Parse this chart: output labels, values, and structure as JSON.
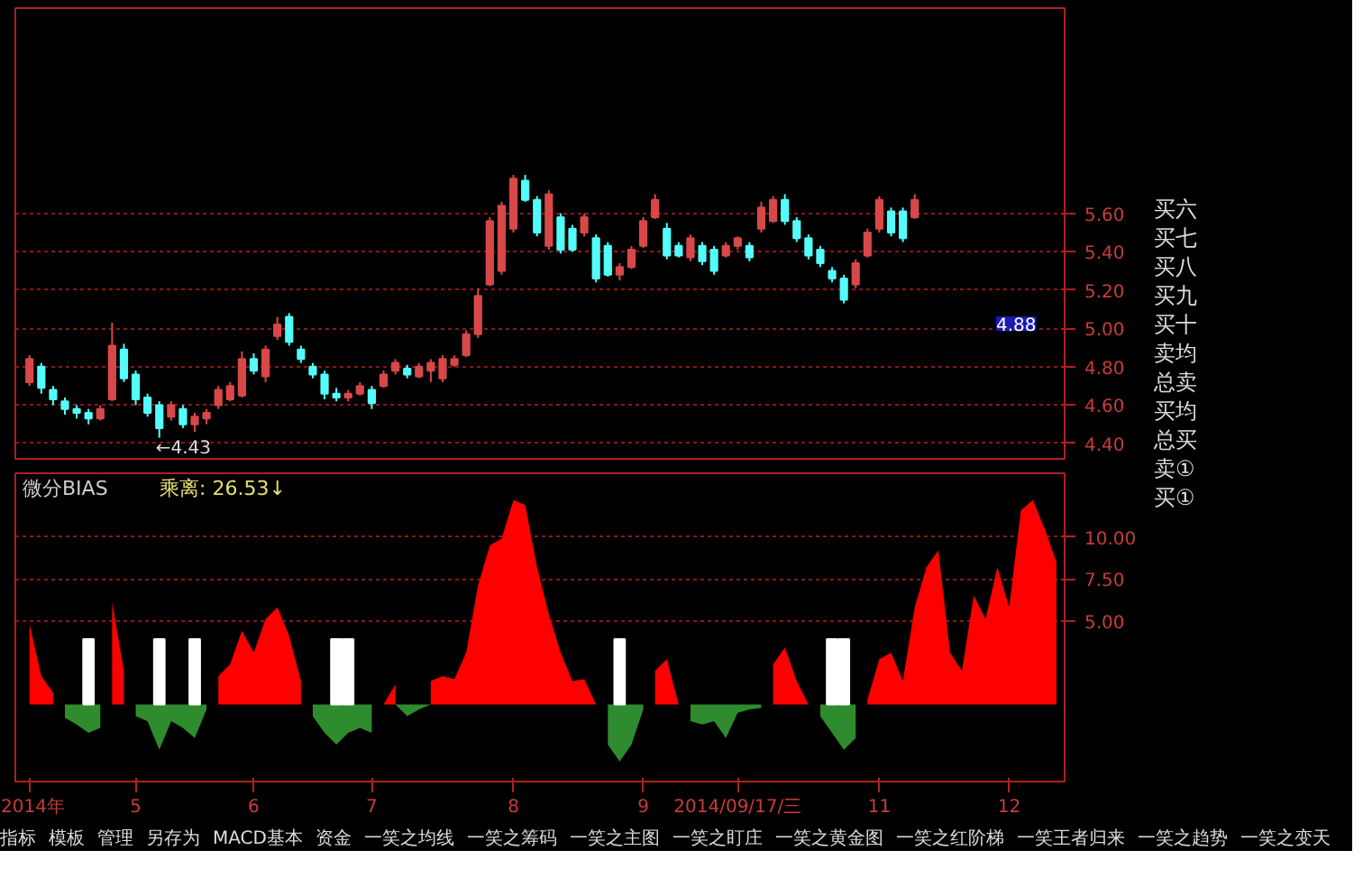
{
  "chart_data": [
    {
      "type": "candlestick",
      "categories": [
        null,
        null,
        null,
        null,
        null,
        null,
        null,
        null,
        null,
        null,
        null,
        null,
        null,
        null,
        null,
        null,
        null,
        null,
        null,
        null,
        null,
        null,
        null,
        null,
        null,
        null,
        null,
        null,
        null,
        null,
        null,
        null,
        null,
        null,
        null,
        null,
        null,
        null,
        null,
        null,
        null,
        null,
        null,
        null,
        null,
        null,
        null,
        null,
        null,
        null,
        null,
        null,
        null,
        null,
        null,
        null,
        null,
        null,
        null,
        null,
        null,
        null,
        null,
        null,
        null,
        null,
        null,
        null,
        null,
        null,
        null,
        null,
        null,
        null,
        null,
        null,
        null,
        null,
        null,
        null,
        null,
        null,
        null,
        null,
        null,
        null,
        null,
        null
      ],
      "ohlc": [
        [
          4.72,
          4.86,
          4.7,
          4.84
        ],
        [
          4.8,
          4.82,
          4.66,
          4.69
        ],
        [
          4.68,
          4.7,
          4.6,
          4.63
        ],
        [
          4.62,
          4.64,
          4.55,
          4.58
        ],
        [
          4.58,
          4.6,
          4.53,
          4.56
        ],
        [
          4.56,
          4.58,
          4.5,
          4.53
        ],
        [
          4.53,
          4.6,
          4.52,
          4.58
        ],
        [
          4.63,
          5.03,
          4.62,
          4.91
        ],
        [
          4.89,
          4.92,
          4.72,
          4.74
        ],
        [
          4.76,
          4.78,
          4.6,
          4.63
        ],
        [
          4.64,
          4.66,
          4.54,
          4.56
        ],
        [
          4.6,
          4.62,
          4.43,
          4.48
        ],
        [
          4.54,
          4.62,
          4.52,
          4.6
        ],
        [
          4.58,
          4.6,
          4.48,
          4.5
        ],
        [
          4.5,
          4.56,
          4.46,
          4.54
        ],
        [
          4.53,
          4.58,
          4.5,
          4.56
        ],
        [
          4.6,
          4.7,
          4.58,
          4.68
        ],
        [
          4.63,
          4.72,
          4.62,
          4.7
        ],
        [
          4.65,
          4.88,
          4.64,
          4.84
        ],
        [
          4.84,
          4.87,
          4.76,
          4.78
        ],
        [
          4.75,
          4.91,
          4.72,
          4.89
        ],
        [
          4.96,
          5.06,
          4.94,
          5.02
        ],
        [
          5.06,
          5.08,
          4.91,
          4.93
        ],
        [
          4.89,
          4.91,
          4.82,
          4.84
        ],
        [
          4.8,
          4.82,
          4.74,
          4.76
        ],
        [
          4.76,
          4.78,
          4.63,
          4.66
        ],
        [
          4.66,
          4.69,
          4.62,
          4.64
        ],
        [
          4.64,
          4.68,
          4.62,
          4.66
        ],
        [
          4.66,
          4.72,
          4.65,
          4.7
        ],
        [
          4.68,
          4.7,
          4.58,
          4.61
        ],
        [
          4.7,
          4.78,
          4.69,
          4.76
        ],
        [
          4.78,
          4.84,
          4.76,
          4.82
        ],
        [
          4.79,
          4.81,
          4.74,
          4.76
        ],
        [
          4.75,
          4.82,
          4.74,
          4.8
        ],
        [
          4.78,
          4.84,
          4.72,
          4.82
        ],
        [
          4.74,
          4.86,
          4.72,
          4.84
        ],
        [
          4.81,
          4.86,
          4.8,
          4.84
        ],
        [
          4.86,
          4.99,
          4.85,
          4.97
        ],
        [
          4.97,
          5.21,
          4.95,
          5.17
        ],
        [
          5.23,
          5.58,
          5.22,
          5.56
        ],
        [
          5.3,
          5.66,
          5.28,
          5.64
        ],
        [
          5.52,
          5.8,
          5.5,
          5.78
        ],
        [
          5.77,
          5.8,
          5.66,
          5.67
        ],
        [
          5.67,
          5.69,
          5.48,
          5.5
        ],
        [
          5.43,
          5.72,
          5.41,
          5.7
        ],
        [
          5.58,
          5.6,
          5.39,
          5.41
        ],
        [
          5.52,
          5.54,
          5.4,
          5.41
        ],
        [
          5.5,
          5.6,
          5.48,
          5.58
        ],
        [
          5.47,
          5.49,
          5.24,
          5.26
        ],
        [
          5.43,
          5.45,
          5.27,
          5.28
        ],
        [
          5.28,
          5.34,
          5.25,
          5.32
        ],
        [
          5.32,
          5.43,
          5.31,
          5.41
        ],
        [
          5.43,
          5.58,
          5.42,
          5.56
        ],
        [
          5.58,
          5.7,
          5.57,
          5.67
        ],
        [
          5.52,
          5.55,
          5.36,
          5.38
        ],
        [
          5.43,
          5.45,
          5.37,
          5.38
        ],
        [
          5.37,
          5.49,
          5.35,
          5.47
        ],
        [
          5.43,
          5.45,
          5.33,
          5.35
        ],
        [
          5.41,
          5.43,
          5.28,
          5.3
        ],
        [
          5.38,
          5.45,
          5.37,
          5.43
        ],
        [
          5.43,
          5.48,
          5.41,
          5.47
        ],
        [
          5.43,
          5.45,
          5.35,
          5.37
        ],
        [
          5.52,
          5.66,
          5.5,
          5.63
        ],
        [
          5.56,
          5.69,
          5.55,
          5.67
        ],
        [
          5.67,
          5.7,
          5.54,
          5.56
        ],
        [
          5.56,
          5.58,
          5.45,
          5.47
        ],
        [
          5.47,
          5.49,
          5.36,
          5.38
        ],
        [
          5.41,
          5.43,
          5.32,
          5.34
        ],
        [
          5.3,
          5.32,
          5.24,
          5.26
        ],
        [
          5.26,
          5.28,
          5.13,
          5.15
        ],
        [
          5.23,
          5.36,
          5.21,
          5.34
        ],
        [
          5.38,
          5.52,
          5.37,
          5.5
        ],
        [
          5.52,
          5.69,
          5.5,
          5.67
        ],
        [
          5.61,
          5.63,
          5.48,
          5.5
        ],
        [
          5.61,
          5.63,
          5.45,
          5.47
        ],
        [
          5.58,
          5.7,
          5.57,
          5.67
        ],
        null,
        null,
        null,
        null,
        null,
        null,
        null,
        null,
        null,
        null,
        null,
        null
      ],
      "colors": [
        "#d84848",
        "#54fcfc",
        "#54fcfc",
        "#54fcfc",
        "#54fcfc",
        "#54fcfc",
        "#d84848",
        "#d84848",
        "#54fcfc",
        "#54fcfc",
        "#54fcfc",
        "#54fcfc",
        "#d84848",
        "#54fcfc",
        "#d84848",
        "#d84848",
        "#d84848",
        "#d84848",
        "#d84848",
        "#54fcfc",
        "#d84848",
        "#d84848",
        "#54fcfc",
        "#54fcfc",
        "#54fcfc",
        "#54fcfc",
        "#54fcfc",
        "#d84848",
        "#d84848",
        "#54fcfc",
        "#d84848",
        "#d84848",
        "#54fcfc",
        "#d84848",
        "#d84848",
        "#d84848",
        "#d84848",
        "#d84848",
        "#d84848",
        "#d84848",
        "#d84848",
        "#d84848",
        "#54fcfc",
        "#54fcfc",
        "#d84848",
        "#54fcfc",
        "#54fcfc",
        "#d84848",
        "#54fcfc",
        "#54fcfc",
        "#d84848",
        "#d84848",
        "#d84848",
        "#d84848",
        "#54fcfc",
        "#54fcfc",
        "#d84848",
        "#54fcfc",
        "#54fcfc",
        "#d84848",
        "#d84848",
        "#54fcfc",
        "#d84848",
        "#d84848",
        "#54fcfc",
        "#54fcfc",
        "#54fcfc",
        "#54fcfc",
        "#54fcfc",
        "#54fcfc",
        "#d84848",
        "#d84848",
        "#d84848",
        "#54fcfc",
        "#54fcfc",
        "#d84848",
        null,
        null,
        null,
        null,
        null,
        null,
        null,
        null,
        null,
        null,
        null,
        null
      ],
      "ylim": [
        4.32,
        6.67
      ],
      "yticks": [
        {
          "value": 4.4,
          "label": "4.40"
        },
        {
          "value": 4.6,
          "label": "4.60"
        },
        {
          "value": 4.8,
          "label": "4.80"
        },
        {
          "value": 5.0,
          "label": "5.00"
        },
        {
          "value": 5.2,
          "label": "5.20"
        },
        {
          "value": 5.4,
          "label": "5.40"
        },
        {
          "value": 5.6,
          "label": "5.60"
        }
      ],
      "grid": "y",
      "tick_labels": "y",
      "annotations": [
        "←4.43",
        "4.88"
      ]
    },
    {
      "type": "area",
      "title": "微分BIAS",
      "subtitle": "乘离: 26.53↓",
      "categories": [
        "2014年",
        null,
        null,
        null,
        null,
        null,
        null,
        null,
        null,
        "5",
        null,
        null,
        null,
        null,
        null,
        null,
        null,
        null,
        null,
        "6",
        null,
        null,
        null,
        null,
        null,
        null,
        null,
        null,
        null,
        "7",
        null,
        null,
        null,
        null,
        null,
        null,
        null,
        null,
        null,
        null,
        null,
        "8",
        null,
        null,
        null,
        null,
        null,
        null,
        null,
        null,
        null,
        null,
        "9",
        null,
        null,
        null,
        null,
        null,
        null,
        null,
        "2014/09/17/三",
        null,
        null,
        null,
        null,
        null,
        null,
        null,
        null,
        null,
        null,
        null,
        "11",
        null,
        null,
        null,
        null,
        null,
        null,
        null,
        null,
        null,
        null,
        "12",
        null,
        null,
        null,
        null
      ],
      "series": [
        {
          "type": "area",
          "color": "#ff0000",
          "values": [
            4.8,
            1.7,
            0.7,
            null,
            null,
            null,
            null,
            6.1,
            2.0,
            null,
            null,
            null,
            null,
            null,
            null,
            null,
            1.7,
            2.4,
            4.4,
            3.1,
            5.1,
            5.8,
            4.1,
            1.4,
            null,
            null,
            null,
            null,
            null,
            null,
            0,
            1.2,
            null,
            null,
            1.4,
            1.7,
            1.5,
            3.1,
            7.1,
            9.5,
            9.9,
            12.2,
            11.9,
            8.2,
            5.4,
            3.1,
            1.4,
            1.5,
            0,
            null,
            null,
            null,
            null,
            2.0,
            2.7,
            0,
            null,
            null,
            null,
            null,
            null,
            null,
            null,
            2.4,
            3.4,
            1.4,
            0,
            null,
            null,
            null,
            null,
            0.3,
            2.7,
            3.1,
            1.4,
            5.8,
            8.2,
            9.2,
            3.1,
            2.0,
            6.5,
            5.1,
            8.2,
            5.8,
            11.6,
            12.2,
            10.5,
            8.5
          ]
        },
        {
          "type": "area",
          "color": "#2e8b2e",
          "values": [
            null,
            null,
            null,
            -0.8,
            -1.2,
            -1.7,
            -1.4,
            null,
            null,
            -0.7,
            -1.0,
            -2.7,
            -1.0,
            -1.4,
            -2.0,
            -0.3,
            null,
            null,
            null,
            null,
            null,
            null,
            null,
            null,
            -0.7,
            -1.7,
            -2.4,
            -1.7,
            -1.4,
            -1.7,
            null,
            0,
            -0.7,
            -0.3,
            0,
            null,
            null,
            null,
            null,
            null,
            null,
            null,
            null,
            null,
            null,
            null,
            null,
            null,
            null,
            -2.4,
            -3.4,
            -2.4,
            -0.3,
            null,
            null,
            null,
            -1.0,
            -1.2,
            -1.0,
            -2.0,
            -0.5,
            -0.3,
            -0.2,
            null,
            null,
            null,
            null,
            -0.7,
            -1.7,
            -2.7,
            -2.0,
            null,
            null,
            null,
            null,
            null,
            null,
            null,
            null,
            null,
            null,
            null,
            null,
            null,
            null,
            null,
            null,
            null
          ]
        },
        {
          "type": "bar",
          "color": "#ffffff",
          "values": [
            null,
            null,
            null,
            null,
            null,
            3.9,
            null,
            null,
            null,
            null,
            null,
            3.9,
            null,
            null,
            3.9,
            null,
            null,
            null,
            null,
            null,
            null,
            null,
            null,
            null,
            null,
            null,
            3.9,
            3.9,
            null,
            null,
            null,
            null,
            null,
            null,
            null,
            null,
            null,
            null,
            null,
            null,
            null,
            null,
            null,
            null,
            null,
            null,
            null,
            null,
            null,
            null,
            3.9,
            null,
            null,
            null,
            null,
            null,
            null,
            null,
            null,
            null,
            null,
            null,
            null,
            null,
            null,
            null,
            null,
            null,
            3.9,
            3.9,
            null,
            null,
            null,
            null,
            null,
            null,
            null,
            null,
            null,
            null,
            null,
            null,
            null,
            null,
            null,
            null,
            null,
            null
          ]
        }
      ],
      "ylim": [
        -4.6,
        13.8
      ],
      "yticks": [
        {
          "value": 5,
          "label": "5.00"
        },
        {
          "value": 7.5,
          "label": "7.50"
        },
        {
          "value": 10,
          "label": "10.00"
        }
      ],
      "grid": "y"
    },
    {
      "type": "other",
      "annotations": [
        "买六",
        "买七",
        "买八",
        "买九",
        "买十",
        "卖均",
        "总卖",
        "买均",
        "总买",
        "卖①",
        "买①"
      ]
    },
    {
      "type": "other",
      "annotations": [
        "指标",
        "模板",
        "管理",
        "另存为",
        "MACD基本",
        "资金",
        "一笑之均线",
        "一笑之筹码",
        "一笑之主图",
        "一笑之盯庄",
        "一笑之黄金图",
        "一笑之红阶梯",
        "一笑王者归来",
        "一笑之趋势",
        "一笑之变天"
      ]
    }
  ]
}
